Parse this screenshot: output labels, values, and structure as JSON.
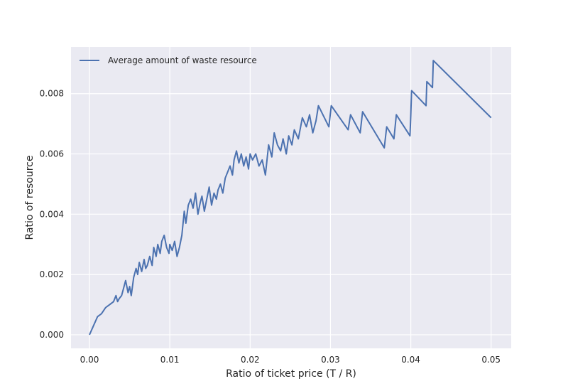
{
  "chart_data": {
    "type": "line",
    "title": "",
    "xlabel": "Ratio of ticket price (T / R)",
    "ylabel": "Ratio of resource",
    "xlim": [
      -0.0023,
      0.0525
    ],
    "ylim": [
      -0.00045,
      0.00955
    ],
    "xticks": [
      0.0,
      0.01,
      0.02,
      0.03,
      0.04,
      0.05
    ],
    "xtick_labels": [
      "0.00",
      "0.01",
      "0.02",
      "0.03",
      "0.04",
      "0.05"
    ],
    "yticks": [
      0.0,
      0.002,
      0.004,
      0.006,
      0.008
    ],
    "ytick_labels": [
      "0.000",
      "0.002",
      "0.004",
      "0.006",
      "0.008"
    ],
    "grid": true,
    "legend_position": "top-left",
    "colors": {
      "background": "#eaeaf2",
      "grid": "#ffffff",
      "series": "#4c72b0"
    },
    "series": [
      {
        "name": "Average amount of waste resource",
        "x": [
          0.0,
          0.0005,
          0.001,
          0.0015,
          0.002,
          0.0025,
          0.003,
          0.0033,
          0.0035,
          0.0037,
          0.004,
          0.0042,
          0.0045,
          0.0048,
          0.005,
          0.0052,
          0.0055,
          0.0058,
          0.006,
          0.0062,
          0.0065,
          0.0068,
          0.007,
          0.0072,
          0.0075,
          0.0078,
          0.008,
          0.0083,
          0.0085,
          0.0088,
          0.009,
          0.0093,
          0.0096,
          0.0099,
          0.01,
          0.0103,
          0.0106,
          0.0109,
          0.0112,
          0.0115,
          0.0118,
          0.012,
          0.0123,
          0.0126,
          0.0129,
          0.0132,
          0.0135,
          0.0138,
          0.014,
          0.0143,
          0.0146,
          0.0149,
          0.0152,
          0.0155,
          0.0158,
          0.016,
          0.0163,
          0.0166,
          0.0169,
          0.0172,
          0.0175,
          0.0178,
          0.018,
          0.0183,
          0.0186,
          0.0189,
          0.0192,
          0.0195,
          0.0198,
          0.02,
          0.0203,
          0.0207,
          0.0211,
          0.0215,
          0.0219,
          0.0223,
          0.0227,
          0.023,
          0.0234,
          0.0238,
          0.0241,
          0.0245,
          0.0248,
          0.0252,
          0.0255,
          0.026,
          0.0265,
          0.027,
          0.0274,
          0.0278,
          0.0282,
          0.0285,
          0.0298,
          0.0301,
          0.0322,
          0.0325,
          0.0337,
          0.034,
          0.0367,
          0.037,
          0.0379,
          0.0382,
          0.0399,
          0.04,
          0.0401,
          0.0419,
          0.042,
          0.0427,
          0.0428,
          0.05
        ],
        "values": [
          0.0,
          0.0003,
          0.0006,
          0.0007,
          0.0009,
          0.001,
          0.0011,
          0.0013,
          0.0011,
          0.0012,
          0.0013,
          0.0015,
          0.0018,
          0.0014,
          0.0016,
          0.0013,
          0.0019,
          0.0022,
          0.002,
          0.0024,
          0.0021,
          0.0025,
          0.0022,
          0.0023,
          0.0026,
          0.0023,
          0.0029,
          0.0026,
          0.003,
          0.0027,
          0.0031,
          0.0033,
          0.0029,
          0.0027,
          0.003,
          0.0028,
          0.0031,
          0.0026,
          0.0029,
          0.0033,
          0.0041,
          0.0037,
          0.0043,
          0.0045,
          0.0042,
          0.0047,
          0.004,
          0.0044,
          0.0046,
          0.0041,
          0.0045,
          0.0049,
          0.0043,
          0.0047,
          0.0045,
          0.0048,
          0.005,
          0.0047,
          0.0052,
          0.0054,
          0.0056,
          0.0053,
          0.0058,
          0.0061,
          0.0057,
          0.006,
          0.0056,
          0.0059,
          0.0055,
          0.006,
          0.0058,
          0.006,
          0.0056,
          0.0058,
          0.0053,
          0.0063,
          0.0059,
          0.0067,
          0.0063,
          0.0061,
          0.0065,
          0.006,
          0.0066,
          0.0063,
          0.0068,
          0.0065,
          0.0072,
          0.0069,
          0.0073,
          0.0067,
          0.0071,
          0.0076,
          0.0069,
          0.0076,
          0.0068,
          0.0073,
          0.0067,
          0.0074,
          0.0062,
          0.0069,
          0.0065,
          0.0073,
          0.0066,
          0.0073,
          0.0081,
          0.0076,
          0.0084,
          0.0082,
          0.0091,
          0.0072
        ]
      }
    ]
  }
}
